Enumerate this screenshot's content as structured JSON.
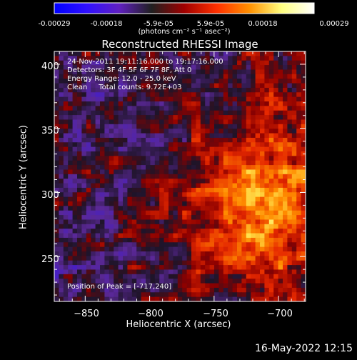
{
  "colorbar": {
    "ticks": [
      "-0.00029",
      "-0.00018",
      "-5.9e-05",
      "5.9e-05",
      "0.00018",
      "0.00029"
    ],
    "values": [
      -0.00029,
      -0.00018,
      -5.9e-05,
      5.9e-05,
      0.00018,
      0.00029
    ],
    "unit_label": "(photons cm⁻² s⁻¹ asec⁻²)",
    "colors": [
      "#0000ff",
      "#3010ff",
      "#6020c0",
      "#202020",
      "#a00000",
      "#ff3000",
      "#ff9000",
      "#ffff80",
      "#ffffff"
    ]
  },
  "chart_data": {
    "type": "heatmap",
    "title": "Reconstructed RHESSI Image",
    "xlabel": "Heliocentric X (arcsec)",
    "ylabel": "Heliocentric Y (arcsec)",
    "xlim": [
      -874,
      -679
    ],
    "ylim": [
      215,
      410
    ],
    "xticks": [
      -850,
      -800,
      -750,
      -700
    ],
    "yticks": [
      250,
      300,
      350,
      400
    ],
    "xtick_labels": [
      "−850",
      "−800",
      "−750",
      "−700"
    ],
    "ytick_labels": [
      "250",
      "300",
      "350",
      "400"
    ],
    "annotations": [
      "24-Nov-2011 19:11:16.000 to 19:17:16.000",
      "Detectors: 3F 4F 5F 6F 7F 8F, Att 0",
      "Energy Range: 12.0 - 25.0 keV",
      "Clean     Total counts: 9.72E+03"
    ],
    "peak_label": "Position of Peak = [-717,240]",
    "peak": [
      -717,
      240
    ]
  },
  "footer": {
    "date": "16-May-2022 12:15"
  }
}
